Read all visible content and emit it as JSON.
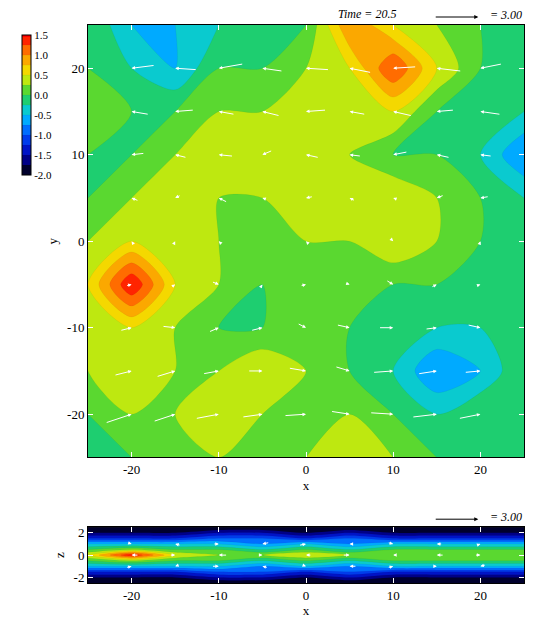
{
  "chart_data": [
    {
      "type": "contour",
      "title": "Time = 20.5",
      "x_label": "x",
      "y_label": "y",
      "xlim": [
        -25,
        25
      ],
      "ylim": [
        -25,
        25
      ],
      "xticks": [
        -20,
        -10,
        0,
        10,
        20
      ],
      "yticks": [
        -20,
        -10,
        0,
        10,
        20
      ],
      "grid": true,
      "colorbar": {
        "range": [
          -2,
          1.5
        ],
        "ticks": [
          {
            "value": -2,
            "label": "-2.0"
          },
          -1.5,
          {
            "value": -1,
            "label": "-1.0"
          },
          -0.5,
          {
            "value": 0,
            "label": "0.0"
          },
          0.5,
          {
            "value": 1,
            "label": "1.0"
          },
          1.5
        ]
      },
      "cells": {
        "x": [
          -25,
          -20,
          -15,
          -10,
          -5,
          0,
          5,
          10,
          15,
          20,
          25
        ],
        "y": [
          -25,
          -20,
          -15,
          -10,
          -5,
          0,
          5,
          10,
          15,
          20,
          25
        ],
        "z": [
          [
            0.0,
            0.0,
            0.25,
            0.25,
            0.0,
            0.25,
            0.5,
            0.25,
            0.0,
            0.0,
            -0.25
          ],
          [
            0.0,
            0.25,
            0.25,
            0.5,
            0.25,
            0.25,
            0.25,
            0.0,
            -0.25,
            0.0,
            0.0
          ],
          [
            0.25,
            0.5,
            0.25,
            0.25,
            0.5,
            0.25,
            0.0,
            -0.25,
            -0.75,
            -0.5,
            0.0
          ],
          [
            0.25,
            0.5,
            0.25,
            0.0,
            0.0,
            0.25,
            0.0,
            0.0,
            -0.25,
            -0.25,
            0.0
          ],
          [
            0.5,
            1.5,
            0.5,
            0.25,
            0.0,
            0.25,
            0.25,
            0.0,
            0.0,
            0.0,
            -0.25
          ],
          [
            0.25,
            0.5,
            0.5,
            0.25,
            0.25,
            0.25,
            0.25,
            0.5,
            0.25,
            0.0,
            0.0
          ],
          [
            0.0,
            0.25,
            0.5,
            0.25,
            0.25,
            0.5,
            0.5,
            0.5,
            0.25,
            0.0,
            -0.25
          ],
          [
            0.0,
            0.0,
            0.25,
            0.5,
            0.5,
            0.5,
            0.25,
            0.0,
            0.0,
            -0.25,
            -0.75
          ],
          [
            0.25,
            0.0,
            0.0,
            0.25,
            0.25,
            0.5,
            0.5,
            0.5,
            0.0,
            0.0,
            -0.25
          ],
          [
            0.0,
            -0.25,
            -0.5,
            0.0,
            0.0,
            0.25,
            0.5,
            1.25,
            0.5,
            0.0,
            0.0
          ],
          [
            0.0,
            -0.5,
            -0.5,
            -0.25,
            0.0,
            0.0,
            1.0,
            0.5,
            0.25,
            0.0,
            0.0
          ]
        ]
      },
      "vectors": {
        "x": [
          -20,
          -15,
          -10,
          -5,
          0,
          5,
          10,
          15,
          20
        ],
        "y": [
          -20,
          -15,
          -10,
          -5,
          0,
          5,
          10,
          15,
          20
        ],
        "u": [
          [
            1.8,
            1.5,
            1.6,
            1.4,
            1.5,
            1.3,
            1.6,
            1.7,
            1.5
          ],
          [
            1.2,
            1.3,
            1.1,
            1.0,
            1.2,
            1.0,
            1.4,
            1.3,
            1.1
          ],
          [
            0.8,
            0.9,
            0.7,
            0.8,
            0.6,
            0.9,
            1.0,
            0.8,
            0.9
          ],
          [
            0.4,
            0.3,
            0.5,
            0.2,
            0.4,
            0.3,
            0.5,
            0.4,
            0.3
          ],
          [
            -0.2,
            0.1,
            -0.1,
            0.0,
            -0.2,
            0.1,
            0.2,
            -0.1,
            0.1
          ],
          [
            -0.5,
            -0.4,
            -0.6,
            -0.3,
            -0.5,
            -0.4,
            -0.3,
            -0.5,
            -0.6
          ],
          [
            -0.9,
            -0.8,
            -1.0,
            -0.7,
            -0.9,
            -0.8,
            -1.0,
            -0.9,
            -0.8
          ],
          [
            -1.2,
            -1.3,
            -1.1,
            -1.2,
            -1.4,
            -1.1,
            -1.3,
            -1.2,
            -1.4
          ],
          [
            -1.6,
            -1.5,
            -1.7,
            -1.4,
            -1.6,
            -1.5,
            -1.6,
            -1.7,
            -1.5
          ]
        ],
        "v": [
          [
            0.6,
            0.5,
            0.3,
            0.2,
            0.1,
            -0.2,
            -0.1,
            0.2,
            0.3
          ],
          [
            0.3,
            0.4,
            0.2,
            0.0,
            -0.2,
            -0.3,
            0.1,
            0.2,
            0.1
          ],
          [
            0.2,
            -0.1,
            0.3,
            0.2,
            -0.3,
            -0.2,
            0.0,
            0.1,
            -0.2
          ],
          [
            0.1,
            0.2,
            -0.2,
            0.3,
            0.1,
            -0.1,
            -0.3,
            0.2,
            0.1
          ],
          [
            0.3,
            0.2,
            0.1,
            -0.1,
            0.2,
            0.0,
            -0.2,
            0.1,
            0.3
          ],
          [
            0.2,
            -0.2,
            0.3,
            0.1,
            -0.1,
            0.2,
            0.1,
            -0.2,
            -0.1
          ],
          [
            -0.1,
            0.2,
            0.1,
            -0.3,
            0.2,
            0.1,
            -0.2,
            0.2,
            0.1
          ],
          [
            0.2,
            -0.1,
            0.2,
            0.3,
            -0.1,
            0.2,
            0.3,
            -0.1,
            0.2
          ],
          [
            -0.2,
            0.1,
            -0.3,
            0.2,
            0.1,
            0.3,
            -0.1,
            0.2,
            -0.3
          ]
        ],
        "key": {
          "value": 3,
          "label": "= 3.00"
        }
      }
    },
    {
      "type": "contour",
      "x_label": "x",
      "y_label": "z",
      "xlim": [
        -25,
        25
      ],
      "ylim": [
        -2.5,
        2.5
      ],
      "xticks": [
        -20,
        -10,
        0,
        10,
        20
      ],
      "yticks": [
        -2,
        0,
        2
      ],
      "grid": true,
      "cells": {
        "x": [
          -25,
          -20,
          -15,
          -10,
          -5,
          0,
          5,
          10,
          15,
          20,
          25
        ],
        "y": [
          -2.5,
          -2.0,
          -1.5,
          -1.0,
          -0.5,
          0,
          0.5,
          1.0,
          1.5,
          2.0,
          2.5
        ],
        "z": [
          [
            -2.0,
            -2.0,
            -2.0,
            -2.0,
            -2.0,
            -2.0,
            -2.0,
            -2.0,
            -2.0,
            -2.0,
            -2.0
          ],
          [
            -1.75,
            -1.75,
            -1.75,
            -1.5,
            -1.5,
            -1.75,
            -1.5,
            -1.75,
            -1.75,
            -1.75,
            -1.75
          ],
          [
            -1.25,
            -1.25,
            -1.25,
            -1.0,
            -1.0,
            -1.25,
            -1.0,
            -1.25,
            -1.25,
            -1.25,
            -1.25
          ],
          [
            -0.5,
            -0.5,
            -0.5,
            -0.5,
            -0.75,
            -0.5,
            -0.75,
            -0.5,
            -0.5,
            -0.5,
            -0.5
          ],
          [
            0.0,
            0.25,
            0.0,
            0.0,
            -0.25,
            0.0,
            -0.25,
            0.0,
            0.0,
            0.0,
            0.0
          ],
          [
            0.5,
            1.5,
            0.5,
            0.25,
            0.25,
            0.5,
            0.25,
            0.25,
            0.25,
            0.25,
            0.25
          ],
          [
            0.0,
            0.25,
            0.0,
            0.0,
            -0.25,
            0.0,
            -0.25,
            0.0,
            0.0,
            0.0,
            0.0
          ],
          [
            -0.5,
            -0.5,
            -0.5,
            -0.5,
            -0.75,
            -0.5,
            -0.75,
            -0.5,
            -0.5,
            -0.5,
            -0.5
          ],
          [
            -1.25,
            -1.25,
            -1.25,
            -1.0,
            -1.0,
            -1.25,
            -1.0,
            -1.25,
            -1.25,
            -1.25,
            -1.25
          ],
          [
            -1.75,
            -1.75,
            -1.75,
            -1.5,
            -1.5,
            -1.75,
            -1.5,
            -1.75,
            -1.75,
            -1.75,
            -1.75
          ],
          [
            -2.0,
            -2.0,
            -2.0,
            -2.0,
            -2.0,
            -2.0,
            -2.0,
            -2.0,
            -2.0,
            -2.0,
            -2.0
          ]
        ]
      },
      "vectors": {
        "x": [
          -20,
          -15,
          -10,
          -5,
          0,
          5,
          10,
          15,
          20
        ],
        "y": [
          -1,
          0,
          1
        ],
        "u": [
          [
            0.4,
            -0.3,
            0.5,
            -0.4,
            0.3,
            -0.5,
            0.4,
            0.3,
            -0.4
          ],
          [
            -0.5,
            0.4,
            -0.6,
            0.3,
            -0.4,
            0.5,
            -0.3,
            -0.5,
            0.4
          ],
          [
            0.3,
            -0.4,
            0.4,
            -0.5,
            0.5,
            -0.3,
            0.4,
            -0.4,
            0.3
          ]
        ],
        "v": [
          [
            0.1,
            -0.1,
            0.0,
            0.1,
            -0.1,
            0.0,
            0.1,
            0.0,
            -0.1
          ],
          [
            0.0,
            0.0,
            0.0,
            0.0,
            0.0,
            0.0,
            0.0,
            0.0,
            0.0
          ],
          [
            -0.1,
            0.1,
            0.0,
            -0.1,
            0.1,
            0.0,
            -0.1,
            0.0,
            0.1
          ]
        ],
        "key": {
          "value": 3,
          "label": "= 3.00"
        }
      }
    }
  ]
}
